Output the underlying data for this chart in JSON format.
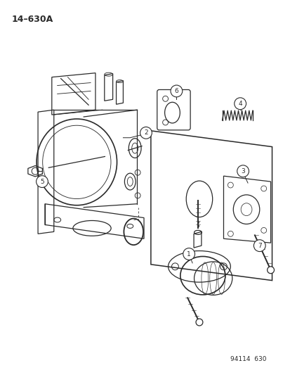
{
  "title": "14–630A",
  "footer": "94114  630",
  "background_color": "#ffffff",
  "line_color": "#2a2a2a",
  "fig_width": 4.14,
  "fig_height": 5.33,
  "dpi": 100
}
